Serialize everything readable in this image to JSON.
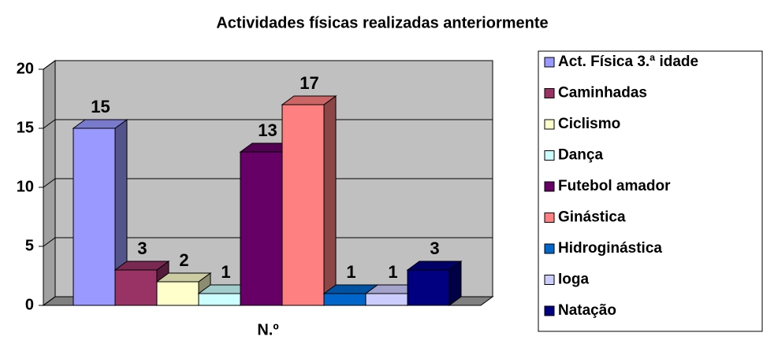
{
  "chart_data": {
    "type": "bar",
    "title": "Actividades físicas realizadas anteriormente",
    "categories": [
      "N.º"
    ],
    "series": [
      {
        "name": "Act. Física 3.ª idade",
        "color": "#9999ff",
        "values": [
          15
        ]
      },
      {
        "name": "Caminhadas",
        "color": "#993366",
        "values": [
          3
        ]
      },
      {
        "name": "Ciclismo",
        "color": "#ffffcc",
        "values": [
          2
        ]
      },
      {
        "name": "Dança",
        "color": "#ccffff",
        "values": [
          1
        ]
      },
      {
        "name": "Futebol amador",
        "color": "#660066",
        "values": [
          13
        ]
      },
      {
        "name": "Ginástica",
        "color": "#ff8080",
        "values": [
          17
        ]
      },
      {
        "name": "Hidroginástica",
        "color": "#0066cc",
        "values": [
          1
        ]
      },
      {
        "name": "Ioga",
        "color": "#ccccff",
        "values": [
          1
        ]
      },
      {
        "name": "Natação",
        "color": "#000080",
        "values": [
          3
        ]
      }
    ],
    "ylim": [
      0,
      20
    ],
    "yticks": [
      0,
      5,
      10,
      15,
      20
    ],
    "grid": true,
    "legend": "right"
  }
}
